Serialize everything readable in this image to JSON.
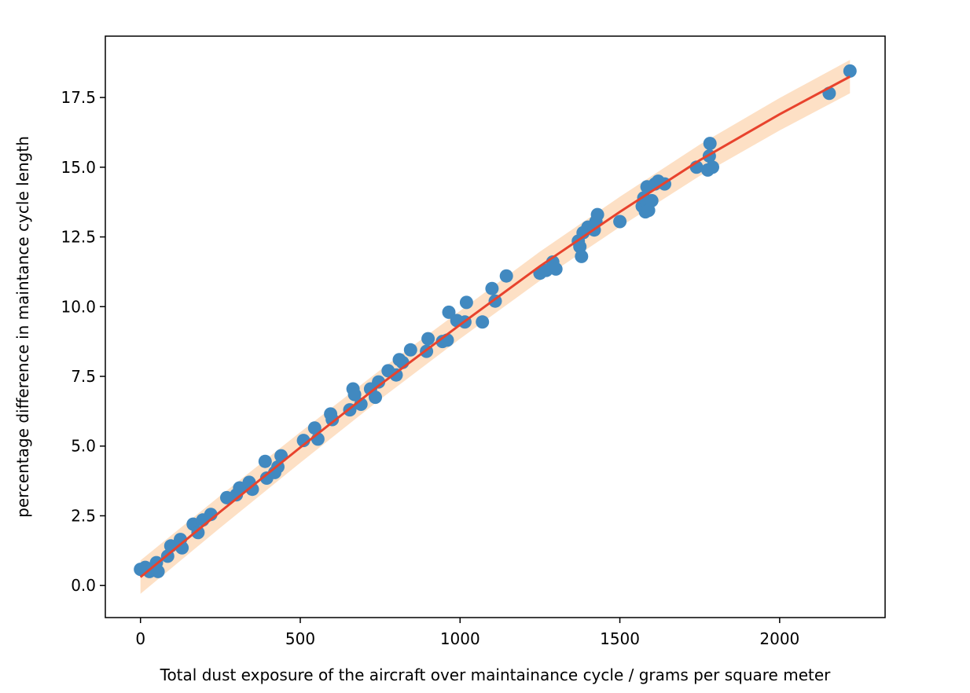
{
  "chart_data": {
    "type": "scatter",
    "xlabel": "Total dust exposure of the aircraft over maintainance cycle / grams per square meter",
    "ylabel": "percentage difference in maintance cycle length",
    "xlim": [
      -110,
      2330
    ],
    "ylim": [
      -1.15,
      19.7
    ],
    "xticks": [
      0,
      500,
      1000,
      1500,
      2000
    ],
    "xtick_labels": [
      "0",
      "500",
      "1000",
      "1500",
      "2000"
    ],
    "yticks": [
      0.0,
      2.5,
      5.0,
      7.5,
      10.0,
      12.5,
      15.0,
      17.5
    ],
    "ytick_labels": [
      "0.0",
      "2.5",
      "5.0",
      "7.5",
      "10.0",
      "12.5",
      "15.0",
      "17.5"
    ],
    "grid": false,
    "legend": "none",
    "colors": {
      "points": "#4189c0",
      "fit": "#e8432d",
      "band": "#fde0c5"
    },
    "points": [
      {
        "x": 0,
        "y": 0.58
      },
      {
        "x": 15,
        "y": 0.65
      },
      {
        "x": 28,
        "y": 0.5
      },
      {
        "x": 40,
        "y": 0.55
      },
      {
        "x": 50,
        "y": 0.82
      },
      {
        "x": 55,
        "y": 0.5
      },
      {
        "x": 85,
        "y": 1.05
      },
      {
        "x": 95,
        "y": 1.42
      },
      {
        "x": 125,
        "y": 1.65
      },
      {
        "x": 130,
        "y": 1.35
      },
      {
        "x": 165,
        "y": 2.2
      },
      {
        "x": 180,
        "y": 1.9
      },
      {
        "x": 195,
        "y": 2.35
      },
      {
        "x": 220,
        "y": 2.55
      },
      {
        "x": 270,
        "y": 3.15
      },
      {
        "x": 300,
        "y": 3.25
      },
      {
        "x": 310,
        "y": 3.5
      },
      {
        "x": 340,
        "y": 3.7
      },
      {
        "x": 350,
        "y": 3.45
      },
      {
        "x": 390,
        "y": 4.45
      },
      {
        "x": 395,
        "y": 3.85
      },
      {
        "x": 420,
        "y": 4.05
      },
      {
        "x": 430,
        "y": 4.25
      },
      {
        "x": 440,
        "y": 4.65
      },
      {
        "x": 510,
        "y": 5.2
      },
      {
        "x": 545,
        "y": 5.65
      },
      {
        "x": 555,
        "y": 5.25
      },
      {
        "x": 595,
        "y": 6.15
      },
      {
        "x": 600,
        "y": 5.95
      },
      {
        "x": 655,
        "y": 6.3
      },
      {
        "x": 665,
        "y": 7.05
      },
      {
        "x": 670,
        "y": 6.85
      },
      {
        "x": 690,
        "y": 6.5
      },
      {
        "x": 720,
        "y": 7.05
      },
      {
        "x": 735,
        "y": 6.75
      },
      {
        "x": 745,
        "y": 7.3
      },
      {
        "x": 775,
        "y": 7.7
      },
      {
        "x": 800,
        "y": 7.55
      },
      {
        "x": 810,
        "y": 8.1
      },
      {
        "x": 820,
        "y": 8.0
      },
      {
        "x": 845,
        "y": 8.45
      },
      {
        "x": 895,
        "y": 8.4
      },
      {
        "x": 900,
        "y": 8.85
      },
      {
        "x": 945,
        "y": 8.75
      },
      {
        "x": 960,
        "y": 8.8
      },
      {
        "x": 965,
        "y": 9.8
      },
      {
        "x": 990,
        "y": 9.5
      },
      {
        "x": 1015,
        "y": 9.45
      },
      {
        "x": 1020,
        "y": 10.15
      },
      {
        "x": 1070,
        "y": 9.45
      },
      {
        "x": 1100,
        "y": 10.65
      },
      {
        "x": 1110,
        "y": 10.2
      },
      {
        "x": 1145,
        "y": 11.1
      },
      {
        "x": 1250,
        "y": 11.2
      },
      {
        "x": 1270,
        "y": 11.3
      },
      {
        "x": 1290,
        "y": 11.6
      },
      {
        "x": 1300,
        "y": 11.35
      },
      {
        "x": 1370,
        "y": 12.35
      },
      {
        "x": 1375,
        "y": 12.15
      },
      {
        "x": 1380,
        "y": 11.8
      },
      {
        "x": 1385,
        "y": 12.65
      },
      {
        "x": 1400,
        "y": 12.85
      },
      {
        "x": 1420,
        "y": 12.75
      },
      {
        "x": 1425,
        "y": 13.05
      },
      {
        "x": 1430,
        "y": 13.3
      },
      {
        "x": 1500,
        "y": 13.05
      },
      {
        "x": 1570,
        "y": 13.6
      },
      {
        "x": 1575,
        "y": 13.9
      },
      {
        "x": 1580,
        "y": 13.4
      },
      {
        "x": 1585,
        "y": 14.3
      },
      {
        "x": 1590,
        "y": 13.45
      },
      {
        "x": 1600,
        "y": 13.8
      },
      {
        "x": 1610,
        "y": 14.4
      },
      {
        "x": 1620,
        "y": 14.5
      },
      {
        "x": 1640,
        "y": 14.4
      },
      {
        "x": 1740,
        "y": 15.0
      },
      {
        "x": 1775,
        "y": 14.9
      },
      {
        "x": 1780,
        "y": 15.4
      },
      {
        "x": 1782,
        "y": 15.85
      },
      {
        "x": 1790,
        "y": 15.0
      },
      {
        "x": 2155,
        "y": 17.65
      },
      {
        "x": 2220,
        "y": 18.45
      }
    ],
    "fit_line": [
      {
        "x": 0,
        "y": 0.3
      },
      {
        "x": 250,
        "y": 2.65
      },
      {
        "x": 500,
        "y": 4.95
      },
      {
        "x": 750,
        "y": 7.2
      },
      {
        "x": 1000,
        "y": 9.35
      },
      {
        "x": 1250,
        "y": 11.45
      },
      {
        "x": 1500,
        "y": 13.4
      },
      {
        "x": 1750,
        "y": 15.25
      },
      {
        "x": 2000,
        "y": 16.9
      },
      {
        "x": 2220,
        "y": 18.25
      }
    ],
    "band_halfwidth": [
      {
        "x": 0,
        "y": 0.6
      },
      {
        "x": 1000,
        "y": 0.5
      },
      {
        "x": 2220,
        "y": 0.6
      }
    ]
  }
}
